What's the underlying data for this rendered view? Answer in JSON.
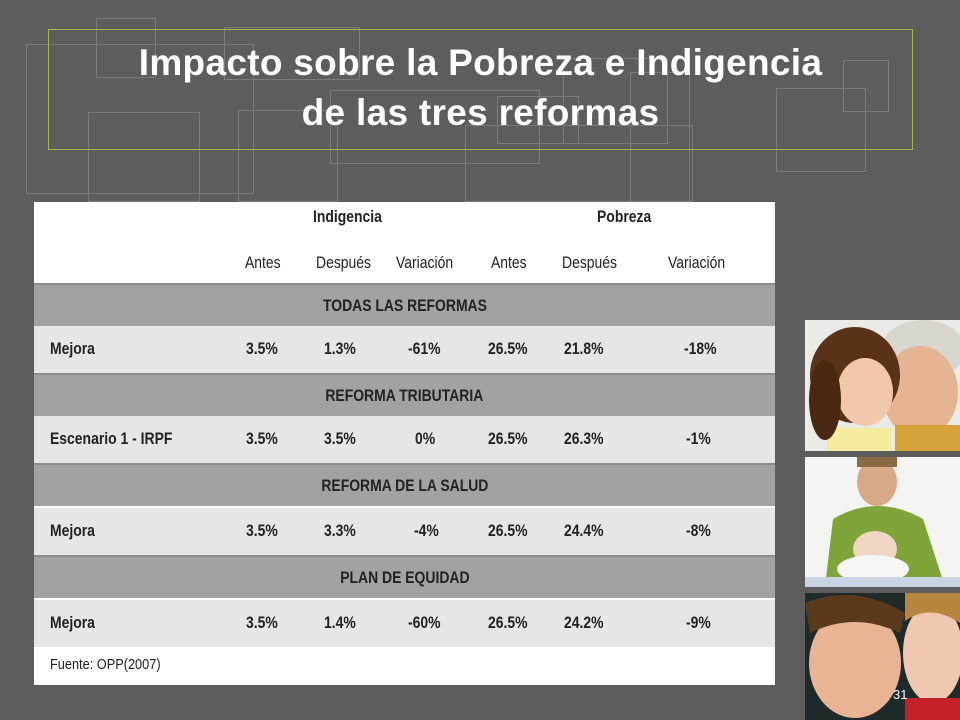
{
  "slide": {
    "title_line1": "Impacto sobre la Pobreza e Indigencia",
    "title_line2": "de las tres reformas",
    "page_number": "31"
  },
  "table": {
    "group_headers": [
      "Indigencia",
      "Pobreza"
    ],
    "column_headers": [
      "Antes",
      "Después",
      "Variación",
      "Antes",
      "Después",
      "Variación"
    ],
    "sections": [
      {
        "title": "TODAS LAS REFORMAS",
        "row": {
          "label": "Mejora",
          "values": [
            "3.5%",
            "1.3%",
            "-61%",
            "26.5%",
            "21.8%",
            "-18%"
          ]
        }
      },
      {
        "title": "REFORMA TRIBUTARIA",
        "row": {
          "label": "Escenario 1 - IRPF",
          "values": [
            "3.5%",
            "3.5%",
            "0%",
            "26.5%",
            "26.3%",
            "-1%"
          ]
        }
      },
      {
        "title": "REFORMA DE LA SALUD",
        "row": {
          "label": "Mejora",
          "values": [
            "3.5%",
            "3.3%",
            "-4%",
            "26.5%",
            "24.4%",
            "-8%"
          ]
        }
      },
      {
        "title": "PLAN DE EQUIDAD",
        "row": {
          "label": "Mejora",
          "values": [
            "3.5%",
            "1.4%",
            "-60%",
            "26.5%",
            "24.2%",
            "-9%"
          ]
        }
      }
    ],
    "source": "Fuente: OPP(2007)"
  },
  "colors": {
    "background": "#5d5d5d",
    "title_border": "#a9b84a",
    "section_band": "#a2a2a2",
    "row_band": "#e6e6e6"
  }
}
